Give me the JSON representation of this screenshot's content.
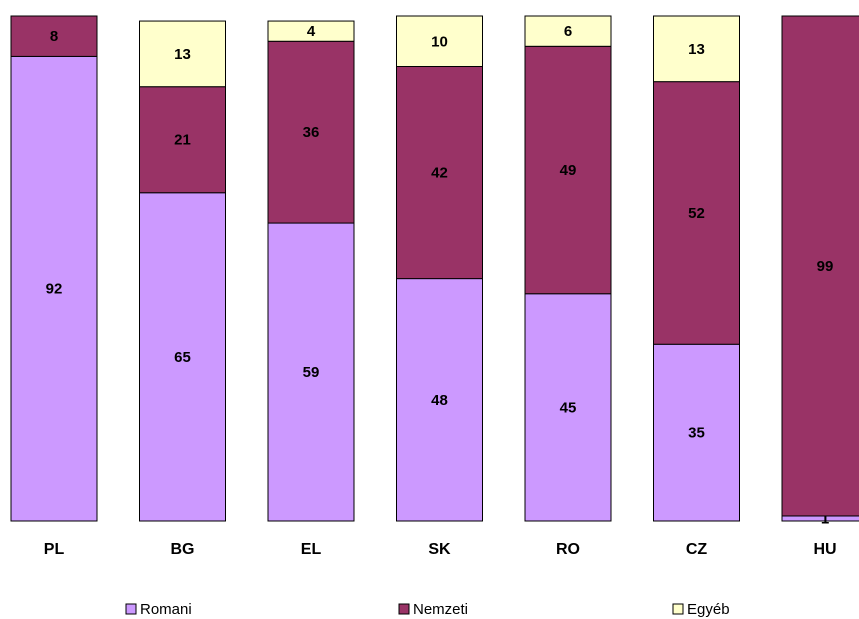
{
  "chart_data": {
    "type": "bar",
    "stacked": true,
    "normalized_percent": true,
    "categories": [
      "PL",
      "BG",
      "EL",
      "SK",
      "RO",
      "CZ",
      "HU"
    ],
    "series": [
      {
        "name": "Romani",
        "color": "#cc99ff",
        "values": [
          92,
          65,
          59,
          48,
          45,
          35,
          1
        ]
      },
      {
        "name": "Nemzeti",
        "color": "#993366",
        "values": [
          8,
          21,
          36,
          42,
          49,
          52,
          99
        ]
      },
      {
        "name": "Egyéb",
        "color": "#ffffcc",
        "values": [
          0,
          13,
          4,
          10,
          6,
          13,
          0
        ]
      }
    ],
    "ylim": [
      0,
      100
    ],
    "grid": false,
    "legend_position": "bottom"
  }
}
